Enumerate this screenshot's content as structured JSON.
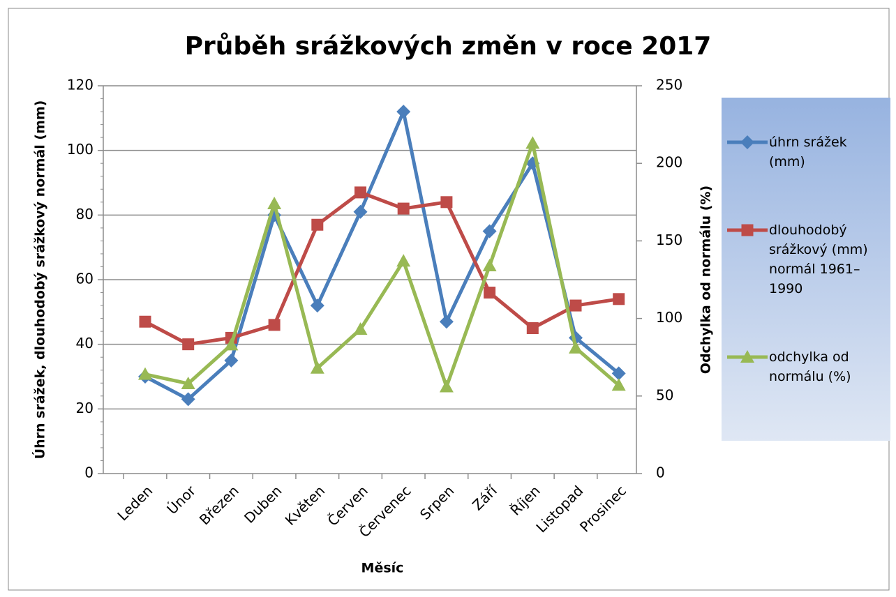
{
  "chart_data": {
    "type": "line",
    "title": "Průběh srážkových změn v roce 2017",
    "x_label": "Měsíc",
    "y_label": "Úhrn srážek, dlouhodobý srážkový normál (mm)",
    "y2_label": "Odchylka od normálu (%)",
    "categories": [
      "Leden",
      "Únor",
      "Březen",
      "Duben",
      "Květen",
      "Červen",
      "Červenec",
      "Srpen",
      "Září",
      "Říjen",
      "Listopad",
      "Prosinec"
    ],
    "series": [
      {
        "name": "úhrn srážek (mm)",
        "color": "#4a7ebb",
        "marker": "diamond",
        "values": [
          30,
          23,
          35,
          80,
          52,
          81,
          112,
          47,
          75,
          96,
          42,
          31
        ]
      },
      {
        "name": "dlouhodobý srážkový (mm) normál 1961–1990",
        "color": "#be4b48",
        "marker": "square",
        "values": [
          47,
          40,
          42,
          46,
          77,
          87,
          82,
          84,
          56,
          45,
          52,
          54
        ]
      },
      {
        "name": "odchylka od normálu (%)",
        "color": "#98b954",
        "marker": "triangle",
        "axis": "y2",
        "values": [
          64,
          58,
          83,
          174,
          68,
          93,
          137,
          56,
          134,
          213,
          81,
          57
        ]
      }
    ],
    "ylim": [
      0,
      120
    ],
    "yticks": [
      0,
      20,
      40,
      60,
      80,
      100,
      120
    ],
    "y2lim": [
      0,
      250
    ],
    "y2ticks": [
      0,
      50,
      100,
      150,
      200,
      250
    ],
    "grid": true,
    "legend": "right"
  }
}
